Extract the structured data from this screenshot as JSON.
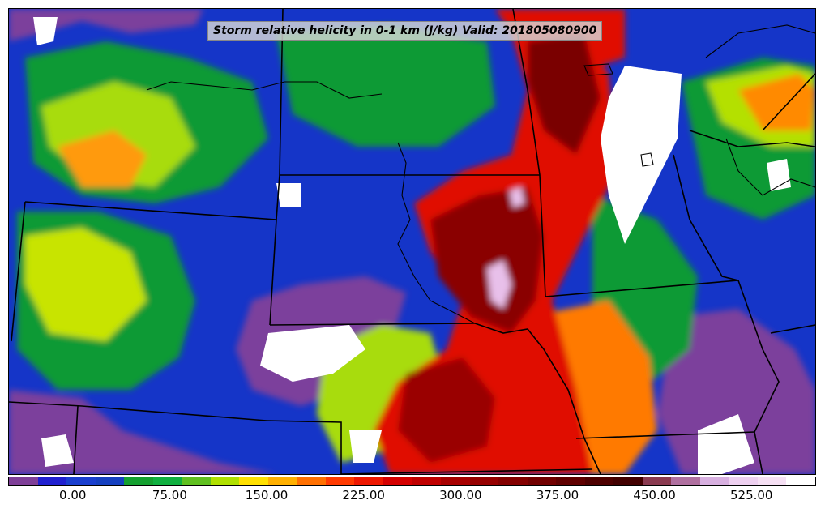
{
  "title": "Storm relative helicity in 0-1 km (J/kg) Valid: 201805080900",
  "colorbar": {
    "min": -50,
    "max": 575,
    "colors": [
      "#7f3f98",
      "#2020d0",
      "#1a3fcf",
      "#1540c0",
      "#14a030",
      "#10b040",
      "#60c020",
      "#b0e000",
      "#ffe000",
      "#ffb000",
      "#ff7000",
      "#ff3a00",
      "#ee1800",
      "#d50000",
      "#c00000",
      "#a80000",
      "#960000",
      "#840000",
      "#720000",
      "#600000",
      "#4e0000",
      "#420000",
      "#8a3a50",
      "#b070a0",
      "#d8b0e0",
      "#eed0f0",
      "#f6e0f4",
      "#ffffff"
    ],
    "tick_labels": [
      "0.00",
      "75.00",
      "150.00",
      "225.00",
      "300.00",
      "375.00",
      "450.00",
      "525.00"
    ],
    "tick_values": [
      0,
      75,
      150,
      225,
      300,
      375,
      450,
      525
    ]
  },
  "field": {
    "variable": "Storm relative helicity 0-1 km",
    "units": "J/kg",
    "valid": "201805080900"
  }
}
